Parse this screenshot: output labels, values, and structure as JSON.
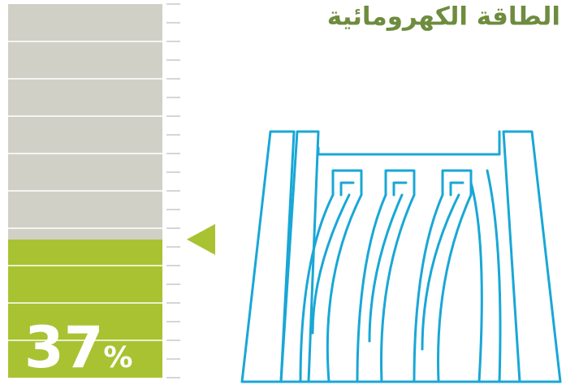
{
  "chart_data": {
    "type": "gauge",
    "title": "الطاقة الكهرومائية",
    "value": 37,
    "value_label": "37%",
    "ylim": [
      0,
      100
    ],
    "yticks": [
      0,
      5,
      10,
      15,
      20,
      25,
      30,
      35,
      40,
      45,
      50,
      55,
      60,
      65,
      70,
      75,
      80,
      85,
      90,
      95,
      100
    ],
    "colors": {
      "filled": "#a8c232",
      "empty": "#d0d0c6",
      "title": "#6e8c3e",
      "illustration": "#19a7d6"
    },
    "grid": true
  }
}
